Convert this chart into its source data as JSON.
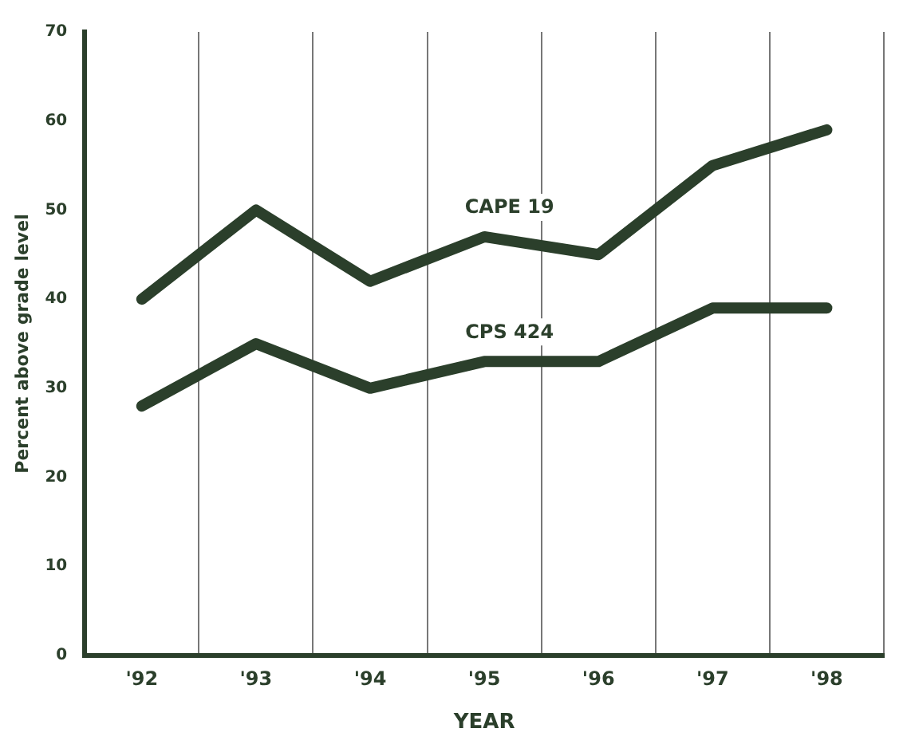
{
  "chart_data": {
    "type": "line",
    "xlabel": "YEAR",
    "ylabel": "Percent above grade level",
    "categories": [
      "'92",
      "'93",
      "'94",
      "'95",
      "'96",
      "'97",
      "'98"
    ],
    "series": [
      {
        "name": "CAPE 19",
        "color": "#2b3f2b",
        "values": [
          40,
          50,
          42,
          47,
          45,
          55,
          59
        ]
      },
      {
        "name": "CPS 424",
        "color": "#2b3f2b",
        "values": [
          28,
          35,
          30,
          33,
          33,
          39,
          39
        ]
      }
    ],
    "ylim": [
      0,
      70
    ],
    "yticks": [
      0,
      10,
      20,
      30,
      40,
      50,
      60,
      70
    ],
    "grid": "x",
    "legend": false,
    "marker": "none",
    "line_style": "solid"
  }
}
